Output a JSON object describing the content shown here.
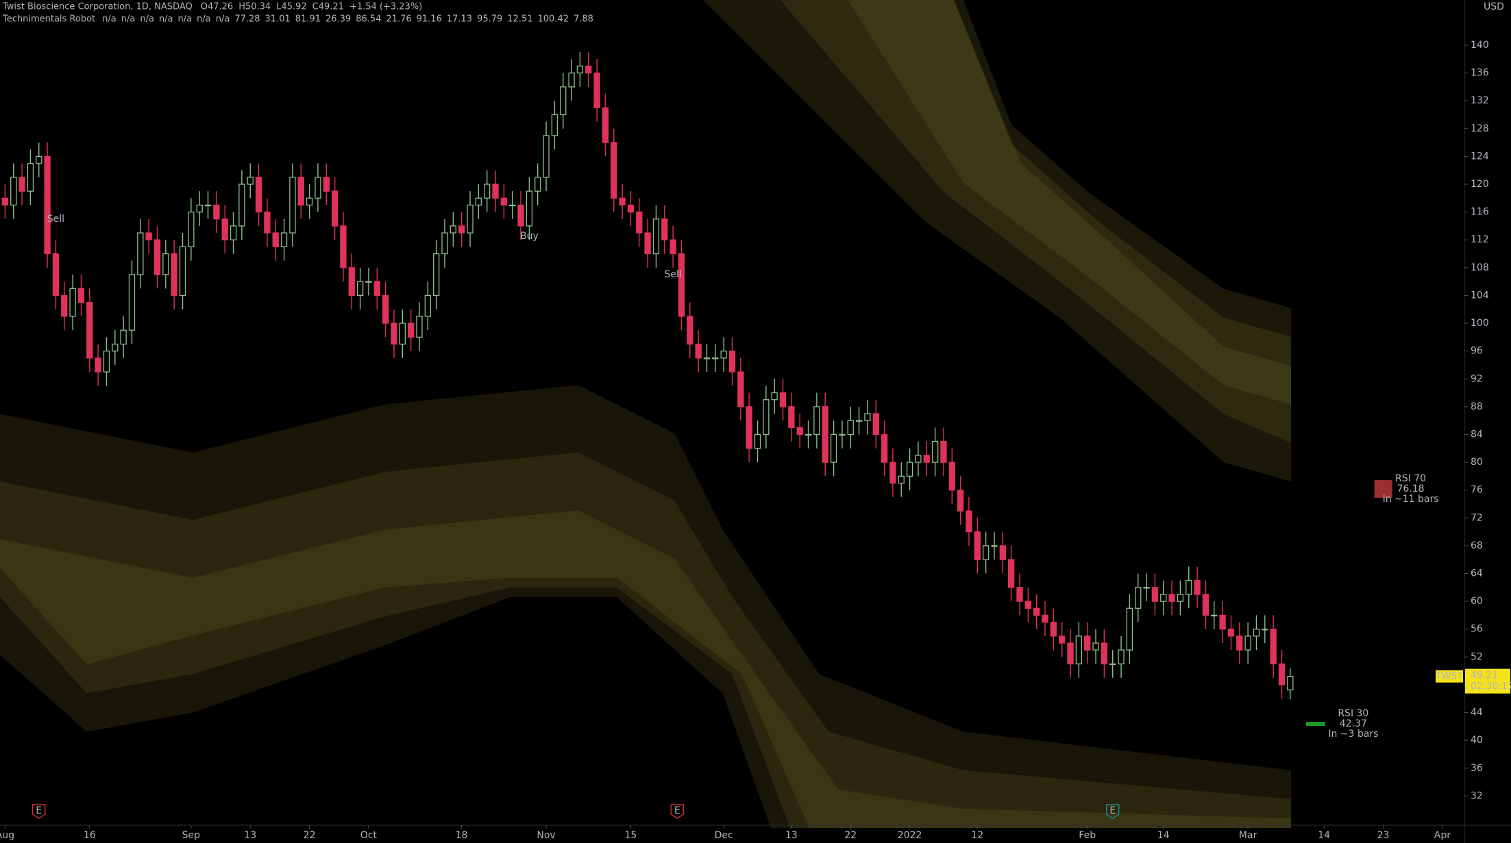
{
  "header": {
    "title": "Twist Bioscience Corporation, 1D, NASDAQ",
    "ohlc": [
      "O47.26",
      "H50.34",
      "L45.92",
      "C49.21",
      "+1.54 (+3.23%)"
    ],
    "indicator": "Technimentals Robot",
    "indicator_values": [
      "n/a",
      "n/a",
      "n/a",
      "n/a",
      "n/a",
      "n/a",
      "n/a",
      "77.28",
      "31.01",
      "81.91",
      "26.39",
      "86.54",
      "21.76",
      "91.16",
      "17.13",
      "95.79",
      "12.51",
      "100.42",
      "7.88"
    ]
  },
  "price_label": {
    "symbol": "TWST",
    "countdown": "02:30:17",
    "currency": "USD"
  },
  "chart_data": {
    "type": "candlestick",
    "up_color": "#8fbf8f",
    "down_color": "#e0335a",
    "grid": false,
    "xlim": [
      -0.6,
      172.6
    ],
    "ylim": [
      27.8,
      146.5
    ],
    "yticks": [
      32,
      36,
      40,
      44,
      48,
      52,
      56,
      60,
      64,
      68,
      72,
      76,
      80,
      84,
      88,
      92,
      96,
      100,
      104,
      108,
      112,
      116,
      120,
      124,
      128,
      132,
      136,
      140
    ],
    "xticks": [
      {
        "value": 0,
        "label": "Aug"
      },
      {
        "value": 10,
        "label": "16"
      },
      {
        "value": 22,
        "label": "Sep"
      },
      {
        "value": 29,
        "label": "13"
      },
      {
        "value": 36,
        "label": "22"
      },
      {
        "value": 43,
        "label": "Oct"
      },
      {
        "value": 54,
        "label": "18"
      },
      {
        "value": 64,
        "label": "Nov"
      },
      {
        "value": 74,
        "label": "15"
      },
      {
        "value": 85,
        "label": "Dec"
      },
      {
        "value": 93,
        "label": "13"
      },
      {
        "value": 100,
        "label": "22"
      },
      {
        "value": 107,
        "label": "2022"
      },
      {
        "value": 115,
        "label": "12"
      },
      {
        "value": 128,
        "label": "Feb"
      },
      {
        "value": 137,
        "label": "14"
      },
      {
        "value": 147,
        "label": "Mar"
      },
      {
        "value": 156,
        "label": "14"
      },
      {
        "value": 163,
        "label": "23"
      },
      {
        "value": 170,
        "label": "Apr"
      }
    ],
    "open": [
      118,
      117,
      121,
      119,
      123,
      124,
      110,
      104,
      101,
      105,
      103,
      95,
      93,
      96,
      97,
      99,
      107,
      113,
      112,
      107,
      110,
      104,
      111,
      116,
      117,
      117,
      115,
      112,
      114,
      120,
      121,
      116,
      113,
      111,
      113,
      121,
      117,
      118,
      121,
      119,
      114,
      108,
      104,
      106,
      106,
      104,
      100,
      97,
      100,
      98,
      101,
      104,
      110,
      113,
      114,
      113,
      117,
      118,
      120,
      118,
      117,
      117,
      114,
      119,
      121,
      127,
      130,
      134,
      136,
      137,
      136,
      131,
      126,
      118,
      117,
      116,
      113,
      110,
      115,
      112,
      110,
      101,
      97,
      95,
      95,
      95,
      96,
      93,
      88,
      82,
      84,
      89,
      90,
      88,
      85,
      84,
      84,
      88,
      80,
      84,
      84,
      86,
      86,
      87,
      84,
      80,
      77,
      78,
      80,
      81,
      80,
      83,
      80,
      76,
      73,
      70,
      66,
      68,
      68,
      66,
      62,
      60,
      59,
      58,
      57,
      55,
      54,
      51,
      55,
      53,
      54,
      51,
      51,
      53,
      59,
      62,
      62,
      60,
      61,
      60,
      61,
      63,
      61,
      58,
      58,
      56,
      55,
      53,
      55,
      56,
      56,
      51,
      47.26
    ],
    "high": [
      120,
      123,
      123,
      125,
      126,
      126,
      112,
      106,
      107,
      107,
      105,
      97,
      98,
      99,
      101,
      109,
      115,
      115,
      114,
      112,
      112,
      113,
      118,
      119,
      119,
      119,
      117,
      116,
      122,
      123,
      123,
      118,
      115,
      115,
      123,
      123,
      120,
      123,
      123,
      121,
      116,
      110,
      108,
      108,
      108,
      106,
      102,
      102,
      102,
      103,
      106,
      112,
      115,
      116,
      116,
      119,
      120,
      122,
      122,
      120,
      119,
      119,
      121,
      123,
      129,
      132,
      136,
      138,
      139,
      139,
      138,
      133,
      128,
      120,
      119,
      118,
      115,
      117,
      117,
      114,
      112,
      103,
      99,
      97,
      97,
      98,
      98,
      95,
      90,
      86,
      91,
      92,
      92,
      90,
      87,
      86,
      90,
      90,
      86,
      86,
      88,
      88,
      89,
      89,
      86,
      82,
      80,
      82,
      83,
      83,
      85,
      85,
      82,
      78,
      75,
      72,
      70,
      70,
      70,
      68,
      64,
      62,
      61,
      60,
      59,
      57,
      56,
      57,
      57,
      56,
      56,
      53,
      55,
      61,
      64,
      64,
      64,
      63,
      63,
      63,
      65,
      65,
      63,
      60,
      60,
      58,
      57,
      57,
      58,
      58,
      58,
      53,
      50.34
    ],
    "low": [
      115,
      115,
      117,
      117,
      121,
      108,
      102,
      99,
      99,
      101,
      93,
      91,
      91,
      94,
      95,
      97,
      105,
      110,
      105,
      105,
      102,
      102,
      109,
      114,
      115,
      113,
      110,
      110,
      112,
      118,
      114,
      111,
      109,
      109,
      111,
      115,
      115,
      116,
      117,
      112,
      106,
      102,
      102,
      104,
      102,
      98,
      95,
      95,
      96,
      96,
      99,
      102,
      108,
      111,
      111,
      111,
      115,
      116,
      116,
      115,
      115,
      112,
      112,
      117,
      119,
      125,
      128,
      132,
      134,
      134,
      129,
      124,
      116,
      115,
      114,
      111,
      108,
      108,
      110,
      108,
      99,
      95,
      93,
      93,
      93,
      93,
      91,
      86,
      80,
      80,
      82,
      87,
      86,
      83,
      82,
      82,
      82,
      78,
      78,
      82,
      82,
      84,
      84,
      82,
      78,
      75,
      75,
      76,
      78,
      78,
      78,
      78,
      74,
      71,
      68,
      64,
      64,
      66,
      64,
      60,
      58,
      57,
      56,
      55,
      53,
      52,
      49,
      49,
      51,
      51,
      49,
      49,
      49,
      51,
      57,
      60,
      58,
      58,
      58,
      58,
      59,
      59,
      56,
      56,
      54,
      53,
      51,
      51,
      53,
      54,
      49,
      46,
      45.92
    ],
    "close": [
      117,
      121,
      119,
      123,
      124,
      110,
      104,
      101,
      105,
      103,
      95,
      93,
      96,
      97,
      99,
      107,
      113,
      112,
      107,
      110,
      104,
      111,
      116,
      117,
      117,
      115,
      112,
      114,
      120,
      121,
      116,
      113,
      111,
      113,
      121,
      117,
      118,
      121,
      119,
      114,
      108,
      104,
      106,
      106,
      104,
      100,
      97,
      100,
      98,
      101,
      104,
      110,
      113,
      114,
      113,
      117,
      118,
      120,
      118,
      117,
      117,
      114,
      119,
      121,
      127,
      130,
      134,
      136,
      137,
      136,
      131,
      126,
      118,
      117,
      116,
      113,
      110,
      115,
      112,
      110,
      101,
      97,
      95,
      95,
      95,
      96,
      93,
      88,
      82,
      84,
      89,
      90,
      88,
      85,
      84,
      84,
      88,
      80,
      84,
      84,
      86,
      86,
      87,
      84,
      80,
      77,
      78,
      80,
      81,
      80,
      83,
      80,
      76,
      73,
      70,
      66,
      68,
      68,
      66,
      62,
      60,
      59,
      58,
      57,
      55,
      54,
      51,
      55,
      53,
      54,
      51,
      51,
      53,
      59,
      62,
      62,
      60,
      61,
      60,
      61,
      63,
      61,
      58,
      58,
      56,
      55,
      53,
      55,
      56,
      56,
      51,
      48,
      49.21
    ],
    "annotations": [
      {
        "text": "Sell",
        "x": 6,
        "y": 115,
        "color": "#f23645"
      },
      {
        "text": "Buy",
        "x": 62,
        "y": 112.5,
        "color": "#4caf50"
      },
      {
        "text": "Sell",
        "x": 79,
        "y": 107,
        "color": "#f23645"
      }
    ],
    "rsi_targets": [
      {
        "label": "RSI 70",
        "value": 76.18,
        "note": "In ~11 bars",
        "x": 163,
        "color": "#9b2f2f"
      },
      {
        "label": "RSI 30",
        "value": 42.37,
        "note": "In ~3 bars",
        "x": 155,
        "color": "#1f9a2a"
      }
    ],
    "earnings": [
      {
        "label": "E",
        "x": 4,
        "color": "#c83030"
      },
      {
        "label": "E",
        "x": 79.5,
        "color": "#c83030"
      },
      {
        "label": "E",
        "x": 131,
        "color": "#1e8a8a"
      }
    ]
  }
}
